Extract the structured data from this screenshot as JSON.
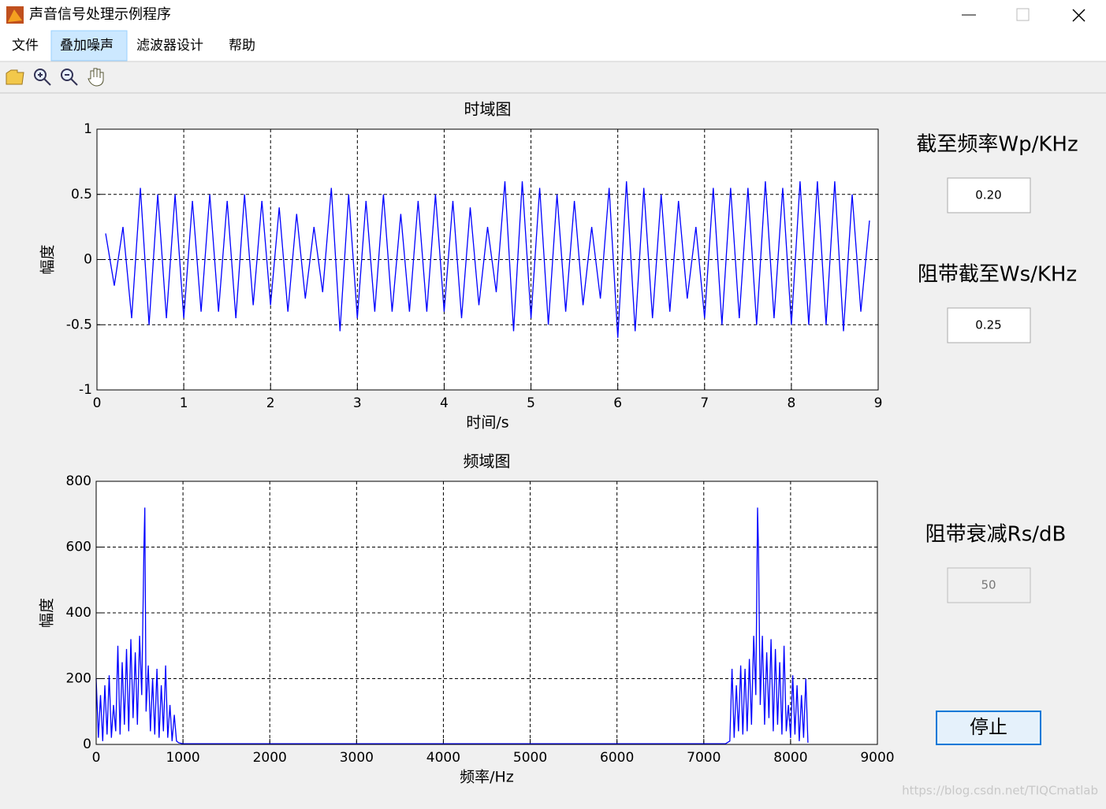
{
  "window": {
    "title": "声音信号处理示例程序"
  },
  "menu": [
    "文件",
    "叠加噪声",
    "滤波器设计",
    "帮助"
  ],
  "controls": [
    {
      "label": "截至频率Wp/KHz",
      "value": "0.20"
    },
    {
      "label": "阻带截至Ws/KHz",
      "value": "0.25"
    },
    {
      "label": "阻带衰减Rs/dB",
      "value": "50"
    }
  ],
  "button": "停止",
  "watermark": "https://blog.csdn.net/TIQCmatlab",
  "chart_data": [
    {
      "type": "line",
      "title": "时域图",
      "x_label": "时间/s",
      "y_label": "幅度",
      "grid": true,
      "xlim": [
        0,
        9
      ],
      "xticks": [
        0,
        1,
        2,
        3,
        4,
        5,
        6,
        7,
        8,
        9
      ],
      "ylim": [
        -1,
        1
      ],
      "yticks": [
        -1,
        -0.5,
        0,
        0.5,
        1
      ],
      "x": [
        0.1,
        0.2,
        0.3,
        0.4,
        0.5,
        0.6,
        0.7,
        0.8,
        0.9,
        1.0,
        1.1,
        1.2,
        1.3,
        1.4,
        1.5,
        1.6,
        1.7,
        1.8,
        1.9,
        2.0,
        2.1,
        2.2,
        2.3,
        2.4,
        2.5,
        2.6,
        2.7,
        2.8,
        2.9,
        3.0,
        3.1,
        3.2,
        3.3,
        3.4,
        3.5,
        3.6,
        3.7,
        3.8,
        3.9,
        4.0,
        4.1,
        4.2,
        4.3,
        4.4,
        4.5,
        4.6,
        4.7,
        4.8,
        4.9,
        5.0,
        5.1,
        5.2,
        5.3,
        5.4,
        5.5,
        5.6,
        5.7,
        5.8,
        5.9,
        6.0,
        6.1,
        6.2,
        6.3,
        6.4,
        6.5,
        6.6,
        6.7,
        6.8,
        6.9,
        7.0,
        7.1,
        7.2,
        7.3,
        7.4,
        7.5,
        7.6,
        7.7,
        7.8,
        7.9,
        8.0,
        8.1,
        8.2,
        8.3,
        8.4,
        8.5,
        8.6,
        8.7,
        8.8,
        8.9
      ],
      "series": [
        {
          "color": "#0000ff",
          "values": [
            0.2,
            -0.2,
            0.25,
            -0.45,
            0.55,
            -0.5,
            0.5,
            -0.45,
            0.5,
            -0.45,
            0.45,
            -0.4,
            0.5,
            -0.4,
            0.45,
            -0.45,
            0.5,
            -0.35,
            0.45,
            -0.35,
            0.4,
            -0.4,
            0.35,
            -0.3,
            0.25,
            -0.25,
            0.55,
            -0.55,
            0.5,
            -0.45,
            0.45,
            -0.4,
            0.5,
            -0.4,
            0.35,
            -0.4,
            0.45,
            -0.4,
            0.5,
            -0.4,
            0.45,
            -0.45,
            0.4,
            -0.35,
            0.25,
            -0.25,
            0.6,
            -0.55,
            0.6,
            -0.45,
            0.55,
            -0.5,
            0.5,
            -0.4,
            0.45,
            -0.35,
            0.25,
            -0.3,
            0.55,
            -0.6,
            0.6,
            -0.55,
            0.55,
            -0.45,
            0.5,
            -0.4,
            0.45,
            -0.3,
            0.25,
            -0.45,
            0.55,
            -0.5,
            0.55,
            -0.45,
            0.55,
            -0.5,
            0.6,
            -0.45,
            0.55,
            -0.5,
            0.6,
            -0.5,
            0.6,
            -0.5,
            0.6,
            -0.55,
            0.5,
            -0.4,
            0.3
          ]
        }
      ]
    },
    {
      "type": "line",
      "title": "频域图",
      "x_label": "频率/Hz",
      "y_label": "幅度",
      "grid": true,
      "xlim": [
        0,
        9000
      ],
      "xticks": [
        0,
        1000,
        2000,
        3000,
        4000,
        5000,
        6000,
        7000,
        8000,
        9000
      ],
      "ylim": [
        0,
        800
      ],
      "yticks": [
        0,
        200,
        400,
        600,
        800
      ],
      "x": [
        0,
        25,
        50,
        75,
        100,
        125,
        150,
        175,
        200,
        225,
        250,
        275,
        300,
        325,
        350,
        375,
        400,
        425,
        450,
        475,
        500,
        525,
        550,
        560,
        575,
        600,
        625,
        650,
        675,
        700,
        725,
        750,
        775,
        800,
        825,
        850,
        875,
        900,
        925,
        950,
        1000,
        7250,
        7300,
        7325,
        7350,
        7375,
        7400,
        7425,
        7450,
        7475,
        7500,
        7525,
        7550,
        7575,
        7600,
        7620,
        7630,
        7650,
        7675,
        7700,
        7725,
        7750,
        7775,
        7800,
        7825,
        7850,
        7875,
        7900,
        7925,
        7950,
        7975,
        8000,
        8025,
        8050,
        8075,
        8100,
        8125,
        8150,
        8175,
        8200
      ],
      "series": [
        {
          "color": "#0000ff",
          "values": [
            200,
            20,
            150,
            10,
            180,
            30,
            210,
            20,
            120,
            40,
            300,
            30,
            250,
            60,
            290,
            40,
            320,
            80,
            280,
            60,
            330,
            150,
            600,
            720,
            100,
            240,
            40,
            200,
            30,
            230,
            20,
            180,
            40,
            240,
            20,
            120,
            10,
            90,
            10,
            5,
            2,
            2,
            10,
            230,
            20,
            180,
            40,
            240,
            30,
            230,
            40,
            260,
            60,
            330,
            150,
            720,
            600,
            120,
            330,
            60,
            280,
            80,
            320,
            40,
            290,
            60,
            250,
            30,
            300,
            40,
            120,
            20,
            210,
            30,
            180,
            10,
            150,
            20,
            200,
            5
          ]
        }
      ]
    }
  ]
}
